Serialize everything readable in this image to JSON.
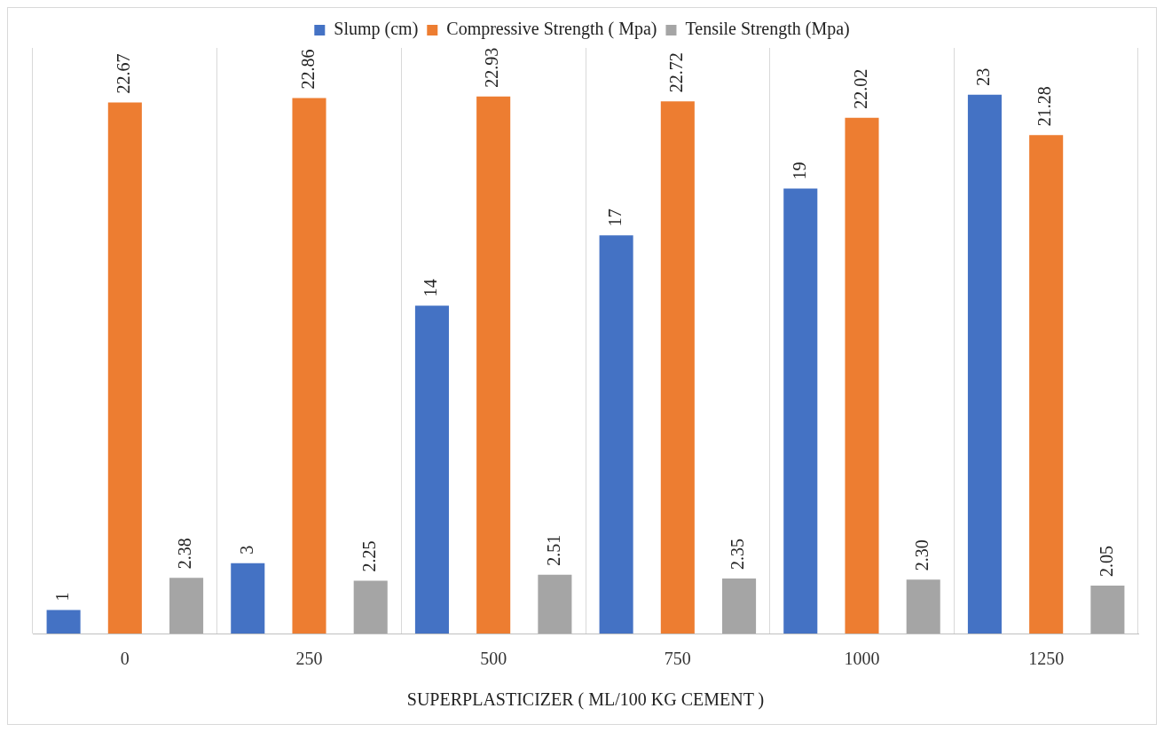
{
  "chart_data": {
    "type": "bar",
    "xlabel": "SUPERPLASTICIZER ( ML/100 KG CEMENT )",
    "categories": [
      "0",
      "250",
      "500",
      "750",
      "1000",
      "1250"
    ],
    "series": [
      {
        "name": "Slump (cm)",
        "color": "#4472c4",
        "values": [
          1,
          3,
          14,
          17,
          19,
          23
        ],
        "value_labels": [
          "1",
          "3",
          "14",
          "17",
          "19",
          "23"
        ]
      },
      {
        "name": "Compressive Strength ( Mpa)",
        "color": "#ed7d31",
        "values": [
          22.67,
          22.86,
          22.93,
          22.72,
          22.02,
          21.28
        ],
        "value_labels": [
          "22.67",
          "22.86",
          "22.93",
          "22.72",
          "22.02",
          "21.28"
        ]
      },
      {
        "name": "Tensile Strength (Mpa)",
        "color": "#a5a5a5",
        "values": [
          2.38,
          2.25,
          2.51,
          2.35,
          2.3,
          2.05
        ],
        "value_labels": [
          "2.38",
          "2.25",
          "2.51",
          "2.35",
          "2.30",
          "2.05"
        ]
      }
    ],
    "grid": "x",
    "legend": "top"
  }
}
